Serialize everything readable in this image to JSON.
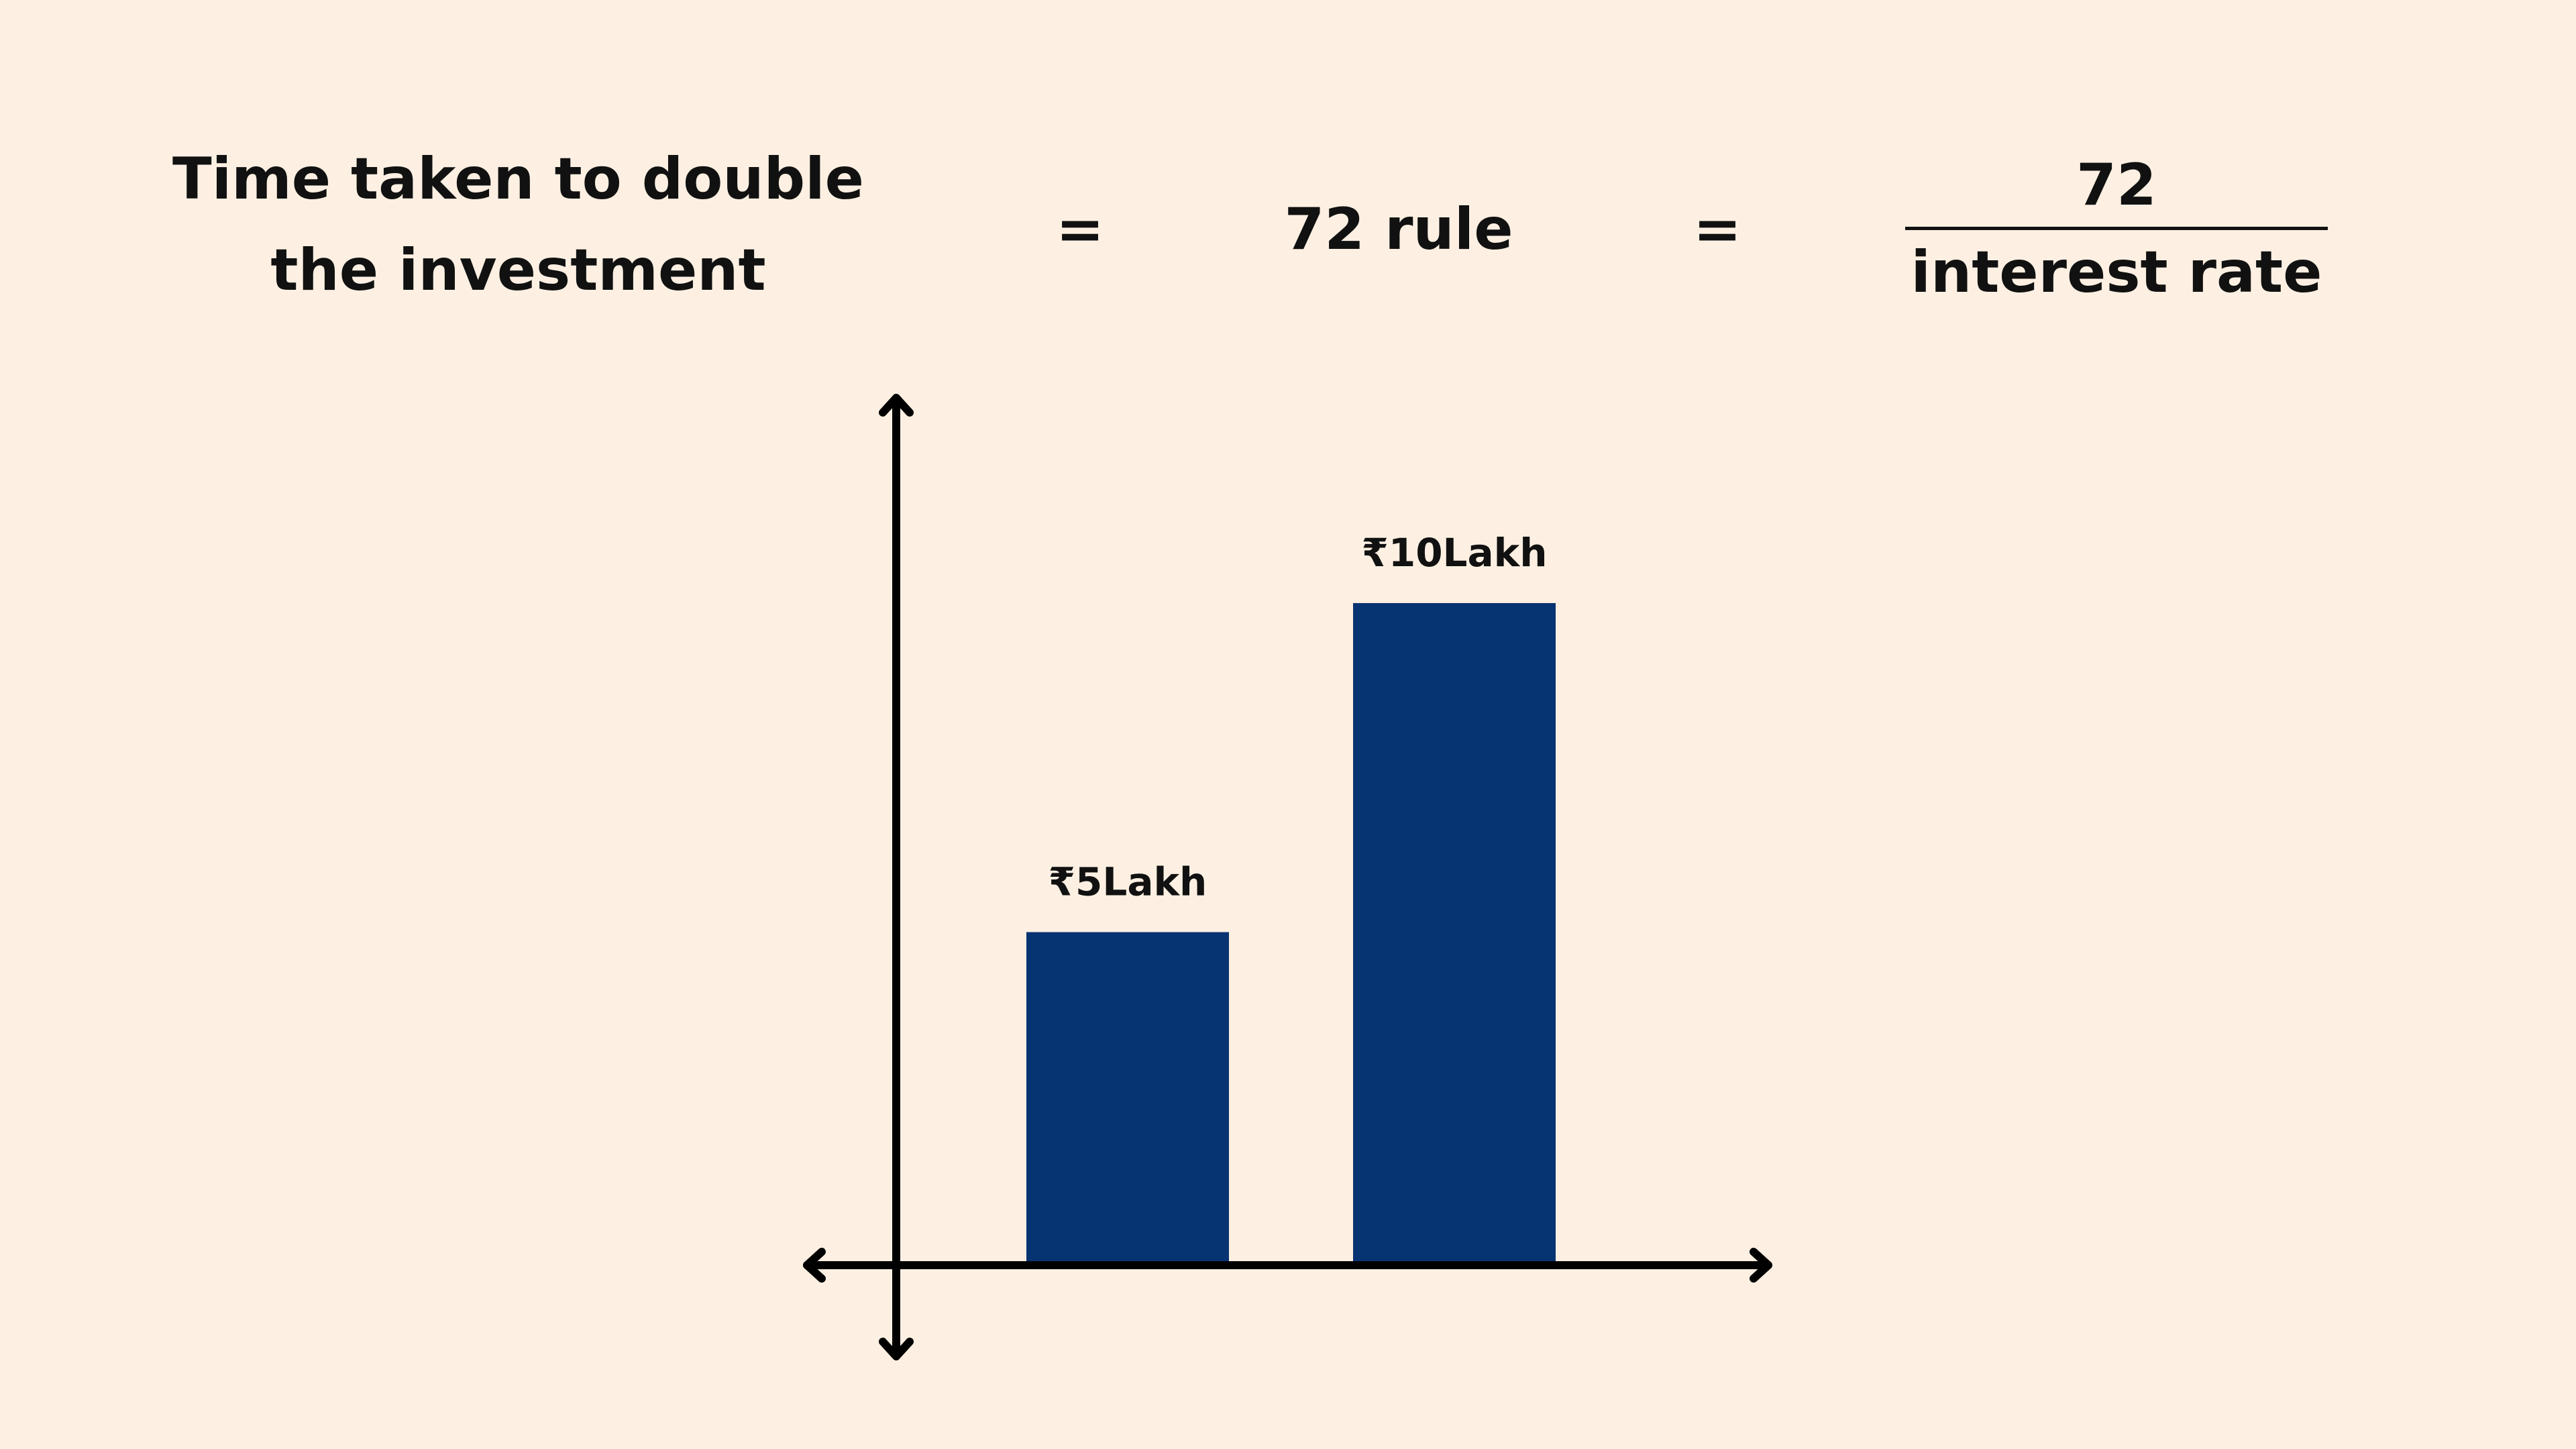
{
  "formula": {
    "lhs_line1": "Time taken to double",
    "lhs_line2": "the investment",
    "equals_1": "=",
    "middle": "72 rule",
    "equals_2": "=",
    "numerator": "72",
    "denominator": "interest rate"
  },
  "chart_data": {
    "type": "bar",
    "categories": [
      "",
      ""
    ],
    "values": [
      5,
      10
    ],
    "data_labels": [
      "₹5Lakh",
      "₹10Lakh"
    ],
    "ylim": [
      0,
      20
    ],
    "title": "",
    "xlabel": "",
    "ylabel": "",
    "grid": false,
    "axes": "arrows",
    "bar_color": "#063372",
    "axis_color": "#000000",
    "background_color": "#fdf0e2"
  }
}
